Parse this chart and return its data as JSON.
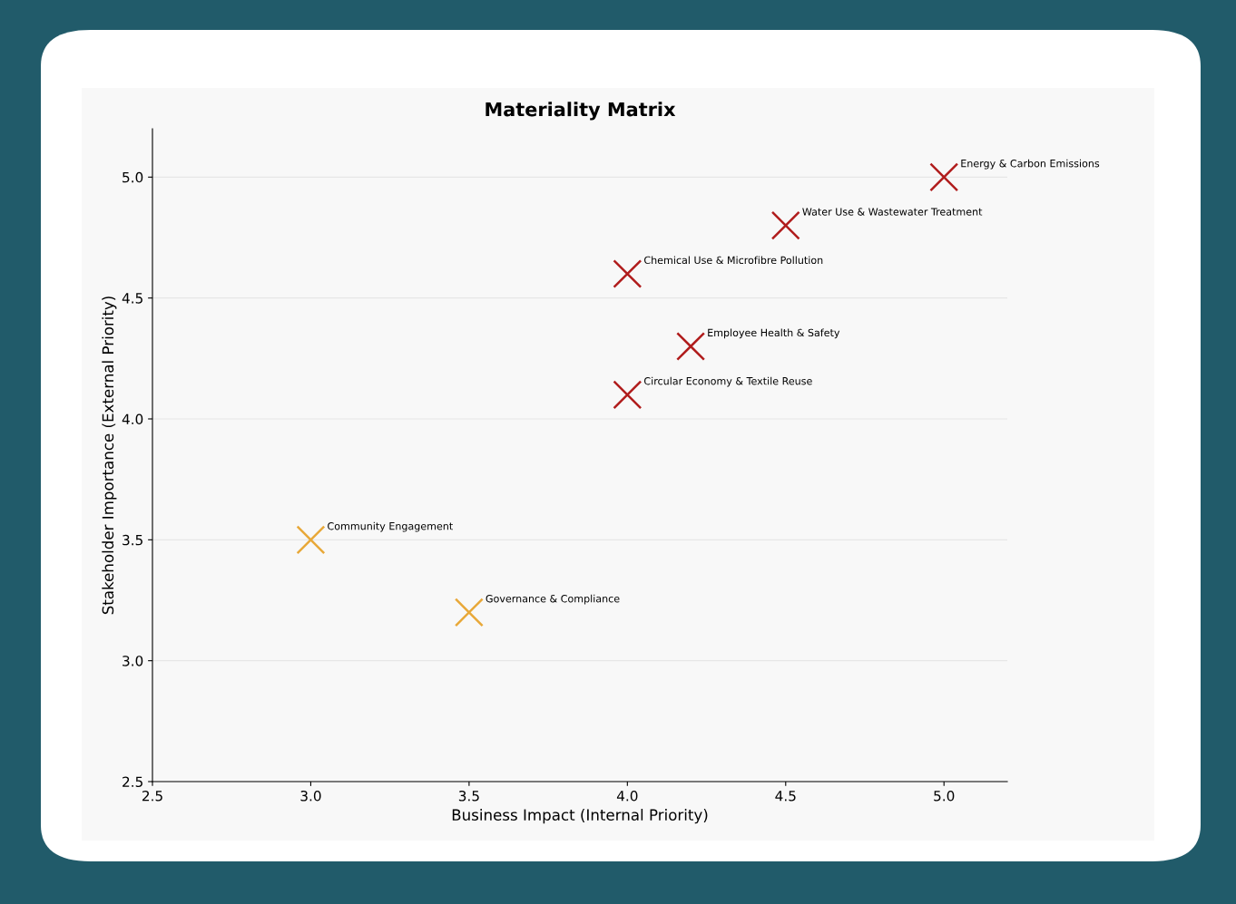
{
  "chart_data": {
    "type": "scatter",
    "title": "Materiality Matrix",
    "xlabel": "Business Impact (Internal Priority)",
    "ylabel": "Stakeholder Importance (External Priority)",
    "series": [
      {
        "color": "#b01c1c",
        "x": [
          5.0,
          4.5,
          4.0,
          4.2,
          4.0
        ],
        "values": [
          5.0,
          4.8,
          4.6,
          4.3,
          4.1
        ]
      },
      {
        "color": "#e8a838",
        "x": [
          3.0,
          3.5
        ],
        "values": [
          3.5,
          3.2
        ]
      }
    ],
    "annotations": [
      {
        "text": "Energy & Carbon Emissions",
        "x": 5.0,
        "y": 5.0
      },
      {
        "text": "Water Use & Wastewater Treatment",
        "x": 4.5,
        "y": 4.8
      },
      {
        "text": "Chemical Use & Microfibre Pollution",
        "x": 4.0,
        "y": 4.6
      },
      {
        "text": "Employee Health & Safety",
        "x": 4.2,
        "y": 4.3
      },
      {
        "text": "Circular Economy & Textile Reuse",
        "x": 4.0,
        "y": 4.1
      },
      {
        "text": "Community Engagement",
        "x": 3.0,
        "y": 3.5
      },
      {
        "text": "Governance & Compliance",
        "x": 3.5,
        "y": 3.2
      }
    ],
    "xlim": [
      2.5,
      5.2
    ],
    "ylim": [
      2.5,
      5.2
    ],
    "xticks": [
      {
        "value": 2.5,
        "label": "2.5"
      },
      {
        "value": 3.0,
        "label": "3.0"
      },
      {
        "value": 3.5,
        "label": "3.5"
      },
      {
        "value": 4.0,
        "label": "4.0"
      },
      {
        "value": 4.5,
        "label": "4.5"
      },
      {
        "value": 5.0,
        "label": "5.0"
      }
    ],
    "yticks": [
      {
        "value": 2.5,
        "label": "2.5"
      },
      {
        "value": 3.0,
        "label": "3.0"
      },
      {
        "value": 3.5,
        "label": "3.5"
      },
      {
        "value": 4.0,
        "label": "4.0"
      },
      {
        "value": 4.5,
        "label": "4.5"
      },
      {
        "value": 5.0,
        "label": "5.0"
      }
    ],
    "grid": "y",
    "marker": "cross"
  }
}
